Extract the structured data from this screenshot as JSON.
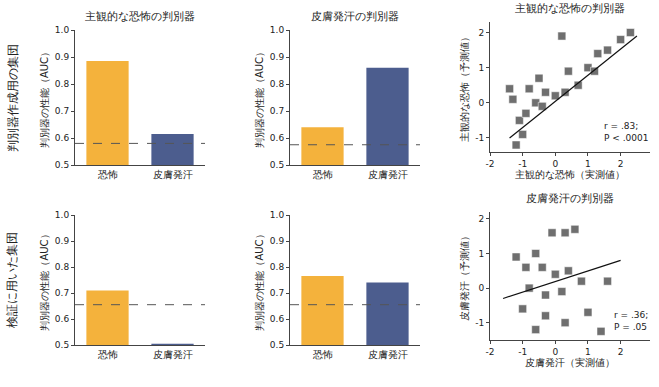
{
  "row_labels": [
    "判別器作成用の集団",
    "検証に用いた集団"
  ],
  "chart_data": [
    {
      "type": "bar",
      "title": "主観的な恐怖の判別器",
      "y_label": "判別器の性能（AUC）",
      "categories": [
        "恐怖",
        "皮膚発汗"
      ],
      "values": [
        0.885,
        0.615
      ],
      "colors": [
        "#F4B23C",
        "#4C5D8E"
      ],
      "ylim": [
        0.5,
        1.0
      ],
      "yticks": [
        0.5,
        0.6,
        0.7,
        0.8,
        0.9,
        {
          "value": 1.0,
          "label": "1.0"
        }
      ],
      "grid": false,
      "reference_line": {
        "value": 0.58,
        "line_style": "dash"
      }
    },
    {
      "type": "bar",
      "title": "皮膚発汗の判別器",
      "y_label": "判別器の性能（AUC）",
      "categories": [
        "恐怖",
        "皮膚発汗"
      ],
      "values": [
        0.64,
        0.86
      ],
      "colors": [
        "#F4B23C",
        "#4C5D8E"
      ],
      "ylim": [
        0.5,
        1.0
      ],
      "yticks": [
        0.5,
        0.6,
        0.7,
        0.8,
        0.9,
        {
          "value": 1.0,
          "label": "1.0"
        }
      ],
      "grid": false,
      "reference_line": {
        "value": 0.575,
        "line_style": "dash"
      }
    },
    {
      "type": "bar",
      "y_label": "判別器の性能（AUC）",
      "categories": [
        "恐怖",
        "皮膚発汗"
      ],
      "values": [
        0.71,
        0.505
      ],
      "colors": [
        "#F4B23C",
        "#4C5D8E"
      ],
      "ylim": [
        0.5,
        1.0
      ],
      "yticks": [
        0.5,
        0.6,
        0.7,
        0.8,
        0.9,
        {
          "value": 1.0,
          "label": "1.0"
        }
      ],
      "grid": false,
      "reference_line": {
        "value": 0.655,
        "line_style": "dash"
      }
    },
    {
      "type": "bar",
      "y_label": "判別器の性能（AUC）",
      "categories": [
        "恐怖",
        "皮膚発汗"
      ],
      "values": [
        0.765,
        0.74
      ],
      "colors": [
        "#F4B23C",
        "#4C5D8E"
      ],
      "ylim": [
        0.5,
        1.0
      ],
      "yticks": [
        0.5,
        0.6,
        0.7,
        0.8,
        0.9,
        {
          "value": 1.0,
          "label": "1.0"
        }
      ],
      "grid": false,
      "reference_line": {
        "value": 0.655,
        "line_style": "dash"
      }
    },
    {
      "type": "scatter",
      "title": "主観的な恐怖の判別器",
      "x_label": "主観的な恐怖（実測値）",
      "y_label": "主観的な恐怖（予測値）",
      "x": [
        -1.2,
        -1.0,
        -1.1,
        -0.9,
        -1.3,
        -0.8,
        -0.6,
        -0.4,
        -0.3,
        0.0,
        0.3,
        0.4,
        0.7,
        1.0,
        1.3,
        1.6,
        2.0,
        2.3,
        0.2,
        1.2,
        -0.5,
        -1.4
      ],
      "values": [
        -1.2,
        -0.9,
        -0.5,
        -0.3,
        0.1,
        0.4,
        0.0,
        -0.1,
        0.3,
        0.2,
        0.3,
        0.9,
        0.5,
        1.0,
        1.4,
        1.5,
        1.8,
        2.0,
        1.9,
        0.9,
        0.7,
        0.4
      ],
      "color": "#6f6f6f",
      "marker": "square",
      "trend_line": {
        "x": [
          -1.4,
          2.5
        ],
        "values": [
          -1.0,
          1.9
        ],
        "line_style": "solid"
      },
      "xlim": [
        -2,
        2.9
      ],
      "xticks": [
        -2,
        -1,
        0,
        1,
        2
      ],
      "ylim": [
        -1.4,
        2.3
      ],
      "yticks": [
        -1,
        0,
        1,
        2
      ],
      "grid": false,
      "annotation": [
        "r = .83;",
        "P < .0001"
      ]
    },
    {
      "type": "scatter",
      "title": "皮膚発汗の判別器",
      "x_label": "皮膚発汗（実測値）",
      "y_label": "皮膚発汗（予測値）",
      "x": [
        -1.2,
        -0.9,
        -0.6,
        -0.1,
        0.3,
        0.6,
        -0.4,
        0.0,
        0.4,
        -0.8,
        -0.3,
        0.2,
        0.8,
        1.6,
        -1.0,
        -0.3,
        0.3,
        1.0,
        1.4,
        -0.6
      ],
      "values": [
        0.9,
        0.6,
        1.0,
        1.6,
        1.6,
        1.7,
        0.6,
        0.4,
        0.5,
        0.0,
        -0.2,
        -0.1,
        0.2,
        0.2,
        -0.6,
        -0.8,
        -1.0,
        -0.7,
        -1.25,
        -1.2
      ],
      "color": "#6f6f6f",
      "marker": "square",
      "trend_line": {
        "x": [
          -1.6,
          2.0
        ],
        "values": [
          -0.3,
          0.8
        ],
        "line_style": "solid"
      },
      "xlim": [
        -2,
        2.9
      ],
      "xticks": [
        -2,
        -1,
        0,
        1,
        2
      ],
      "ylim": [
        -1.5,
        2.2
      ],
      "yticks": [
        -1,
        0,
        1,
        2
      ],
      "grid": false,
      "annotation": [
        "r = .36;",
        "P = .05"
      ]
    }
  ]
}
